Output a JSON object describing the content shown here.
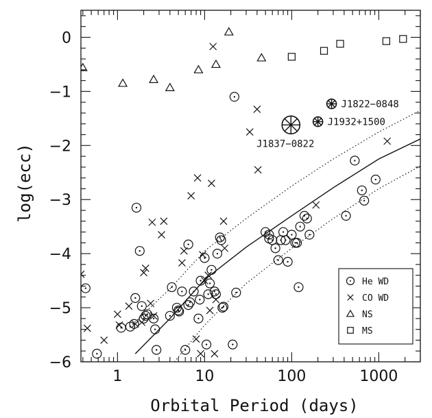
{
  "chart_data": {
    "type": "scatter",
    "xlabel": "Orbital Period (days)",
    "ylabel": "log(ecc)",
    "xscale": "log",
    "xlim": [
      0.38,
      3000
    ],
    "ylim": [
      -6,
      0.5
    ],
    "x_ticks": [
      1,
      10,
      100,
      1000
    ],
    "x_tick_labels": [
      "1",
      "10",
      "100",
      "1000"
    ],
    "y_ticks": [
      0,
      -1,
      -2,
      -3,
      -4,
      -5,
      -6
    ],
    "y_tick_labels": [
      "0",
      "−1",
      "−2",
      "−3",
      "−4",
      "−5",
      "−6"
    ],
    "legend": {
      "placement": "bottom-right",
      "entries": [
        {
          "marker": "circle-dot",
          "label": "He WD"
        },
        {
          "marker": "cross",
          "label": "CO WD"
        },
        {
          "marker": "triangle",
          "label": "NS"
        },
        {
          "marker": "square",
          "label": "MS"
        }
      ]
    },
    "series": [
      {
        "name": "He WD",
        "marker": "circle-dot",
        "points": [
          [
            0.43,
            -4.64
          ],
          [
            0.58,
            -5.85
          ],
          [
            1.1,
            -5.37
          ],
          [
            1.4,
            -5.35
          ],
          [
            1.55,
            -5.3
          ],
          [
            1.6,
            -4.82
          ],
          [
            1.65,
            -3.15
          ],
          [
            1.8,
            -3.95
          ],
          [
            1.9,
            -4.97
          ],
          [
            2.0,
            -5.2
          ],
          [
            2.1,
            -5.15
          ],
          [
            2.2,
            -5.12
          ],
          [
            2.6,
            -5.2
          ],
          [
            2.7,
            -5.4
          ],
          [
            2.8,
            -5.78
          ],
          [
            4.0,
            -5.15
          ],
          [
            4.2,
            -4.62
          ],
          [
            4.8,
            -5.0
          ],
          [
            5.0,
            -5.05
          ],
          [
            5.1,
            -5.07
          ],
          [
            5.5,
            -4.7
          ],
          [
            6.0,
            -5.78
          ],
          [
            6.5,
            -4.95
          ],
          [
            6.5,
            -3.83
          ],
          [
            6.8,
            -4.9
          ],
          [
            7.5,
            -4.7
          ],
          [
            8.5,
            -5.2
          ],
          [
            8.8,
            -4.85
          ],
          [
            9.0,
            -4.5
          ],
          [
            10.0,
            -4.08
          ],
          [
            10.5,
            -5.68
          ],
          [
            11.0,
            -4.75
          ],
          [
            11.5,
            -4.55
          ],
          [
            12.0,
            -4.3
          ],
          [
            13.0,
            -4.7
          ],
          [
            13.5,
            -4.75
          ],
          [
            14.0,
            -4.0
          ],
          [
            15.0,
            -3.7
          ],
          [
            15.5,
            -3.75
          ],
          [
            16.0,
            -5.0
          ],
          [
            16.5,
            -4.98
          ],
          [
            21.0,
            -5.68
          ],
          [
            22.0,
            -1.1
          ],
          [
            23.0,
            -4.72
          ],
          [
            50.0,
            -3.6
          ],
          [
            55.0,
            -3.65
          ],
          [
            55.0,
            -3.72
          ],
          [
            60.0,
            -3.75
          ],
          [
            65.0,
            -3.9
          ],
          [
            70.0,
            -4.12
          ],
          [
            75.0,
            -3.75
          ],
          [
            80.0,
            -3.6
          ],
          [
            85.0,
            -3.75
          ],
          [
            90.0,
            -4.15
          ],
          [
            100.0,
            -3.65
          ],
          [
            110.0,
            -3.8
          ],
          [
            115.0,
            -3.8
          ],
          [
            120.0,
            -4.62
          ],
          [
            125.0,
            -3.5
          ],
          [
            140.0,
            -3.3
          ],
          [
            150.0,
            -3.35
          ],
          [
            160.0,
            -3.65
          ],
          [
            420.0,
            -3.3
          ],
          [
            530.0,
            -2.28
          ],
          [
            640.0,
            -2.83
          ],
          [
            680.0,
            -3.02
          ],
          [
            920.0,
            -2.63
          ]
        ]
      },
      {
        "name": "CO WD",
        "marker": "cross",
        "points": [
          [
            0.38,
            -4.38
          ],
          [
            0.45,
            -5.38
          ],
          [
            0.7,
            -5.6
          ],
          [
            1.0,
            -5.12
          ],
          [
            1.05,
            -5.32
          ],
          [
            1.35,
            -4.97
          ],
          [
            1.6,
            -5.3
          ],
          [
            1.9,
            -5.27
          ],
          [
            2.0,
            -4.35
          ],
          [
            2.1,
            -4.27
          ],
          [
            2.4,
            -4.92
          ],
          [
            2.5,
            -3.42
          ],
          [
            2.6,
            -5.15
          ],
          [
            3.2,
            -3.65
          ],
          [
            3.4,
            -3.4
          ],
          [
            5.5,
            -4.17
          ],
          [
            5.8,
            -3.95
          ],
          [
            7.0,
            -2.93
          ],
          [
            8.0,
            -5.58
          ],
          [
            8.3,
            -2.6
          ],
          [
            9.0,
            -5.85
          ],
          [
            9.5,
            -4.02
          ],
          [
            10.0,
            -4.5
          ],
          [
            11.0,
            -4.4
          ],
          [
            11.5,
            -5.05
          ],
          [
            12.0,
            -2.7
          ],
          [
            12.5,
            -0.17
          ],
          [
            13.0,
            -5.85
          ],
          [
            13.5,
            -4.85
          ],
          [
            16.5,
            -3.4
          ],
          [
            17.0,
            -3.9
          ],
          [
            33.0,
            -1.75
          ],
          [
            40.0,
            -1.33
          ],
          [
            41.0,
            -2.45
          ],
          [
            190.0,
            -3.1
          ],
          [
            1250.0,
            -1.92
          ]
        ]
      },
      {
        "name": "NS",
        "marker": "triangle",
        "points": [
          [
            0.4,
            -0.56
          ],
          [
            1.15,
            -0.85
          ],
          [
            2.6,
            -0.78
          ],
          [
            4.0,
            -0.93
          ],
          [
            8.5,
            -0.6
          ],
          [
            13.5,
            -0.5
          ],
          [
            19.0,
            0.1
          ],
          [
            45.0,
            -0.38
          ]
        ]
      },
      {
        "name": "MS",
        "marker": "square",
        "points": [
          [
            100.0,
            -0.36
          ],
          [
            235.0,
            -0.25
          ],
          [
            360.0,
            -0.12
          ],
          [
            1220.0,
            -0.07
          ],
          [
            1900.0,
            -0.03
          ]
        ]
      }
    ],
    "highlighted_pulsars": [
      {
        "label": "J1822−0848",
        "x": 287,
        "y": -1.23
      },
      {
        "label": "J1932+1500",
        "x": 200,
        "y": -1.56
      },
      {
        "label": "J1837−0822",
        "x": 98,
        "y": -1.62
      }
    ],
    "lines": [
      {
        "style": "solid",
        "points": [
          [
            1.6,
            -5.85
          ],
          [
            4.0,
            -5.2
          ],
          [
            10.0,
            -4.48
          ],
          [
            30.0,
            -3.88
          ],
          [
            100.0,
            -3.3
          ],
          [
            300.0,
            -2.78
          ],
          [
            1000.0,
            -2.25
          ],
          [
            3000.0,
            -1.88
          ]
        ]
      },
      {
        "style": "dotted",
        "points": [
          [
            1.4,
            -5.35
          ],
          [
            4.0,
            -4.65
          ],
          [
            10.0,
            -3.95
          ],
          [
            30.0,
            -3.35
          ],
          [
            100.0,
            -2.75
          ],
          [
            300.0,
            -2.25
          ],
          [
            1000.0,
            -1.75
          ],
          [
            3000.0,
            -1.35
          ]
        ]
      },
      {
        "style": "dotted",
        "points": [
          [
            4.5,
            -6.0
          ],
          [
            10.0,
            -5.32
          ],
          [
            30.0,
            -4.55
          ],
          [
            100.0,
            -3.9
          ],
          [
            300.0,
            -3.35
          ],
          [
            1000.0,
            -2.8
          ],
          [
            3000.0,
            -2.38
          ]
        ]
      }
    ]
  }
}
